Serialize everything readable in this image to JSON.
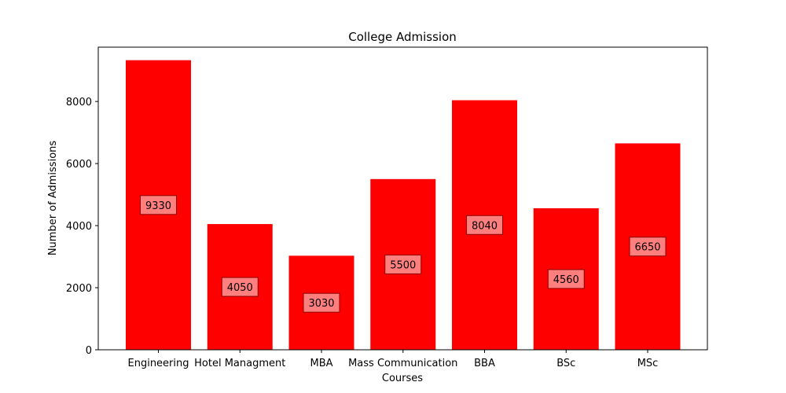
{
  "chart_data": {
    "type": "bar",
    "title": "College Admission",
    "xlabel": "Courses",
    "ylabel": "Number of Admissions",
    "categories": [
      "Engineering",
      "Hotel Managment",
      "MBA",
      "Mass Communication",
      "BBA",
      "BSc",
      "MSc"
    ],
    "values": [
      9330,
      4050,
      3030,
      5500,
      8040,
      4560,
      6650
    ],
    "ylim": [
      0,
      9750
    ],
    "yticks": [
      0,
      2000,
      4000,
      6000,
      8000
    ],
    "grid": false,
    "bar_color": "#ff0000",
    "label_box_color": "#ff7f7f",
    "label_position": "bar-middle"
  }
}
